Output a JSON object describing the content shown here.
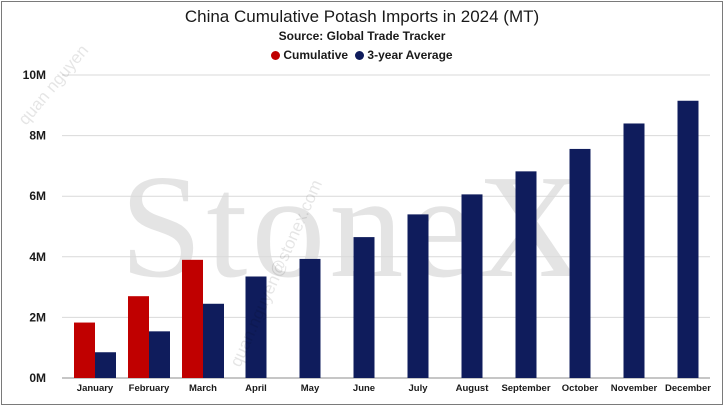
{
  "chart_data": {
    "type": "bar",
    "title": "China Cumulative Potash Imports in 2024 (MT)",
    "subtitle": "Source: Global Trade Tracker",
    "categories": [
      "January",
      "February",
      "March",
      "April",
      "May",
      "June",
      "July",
      "August",
      "September",
      "October",
      "November",
      "December"
    ],
    "series": [
      {
        "name": "Cumulative",
        "color": "#c00000",
        "values": [
          1830000,
          2700000,
          3900000,
          null,
          null,
          null,
          null,
          null,
          null,
          null,
          null,
          null
        ]
      },
      {
        "name": "3-year Average",
        "color": "#0f1c5c",
        "values": [
          850000,
          1540000,
          2450000,
          3350000,
          3930000,
          4650000,
          5400000,
          6060000,
          6820000,
          7560000,
          8400000,
          9150000
        ]
      }
    ],
    "ylim": [
      0,
      10000000
    ],
    "yticks": [
      0,
      2000000,
      4000000,
      6000000,
      8000000,
      10000000
    ],
    "ytick_labels": [
      "0M",
      "2M",
      "4M",
      "6M",
      "8M",
      "10M"
    ],
    "xlabel": "",
    "ylabel": "",
    "grid": true,
    "legend": "top-center"
  },
  "watermark": {
    "brand": "StoneX",
    "user": "quan nguyen",
    "email": "quan.nguyen@stonex.com"
  }
}
